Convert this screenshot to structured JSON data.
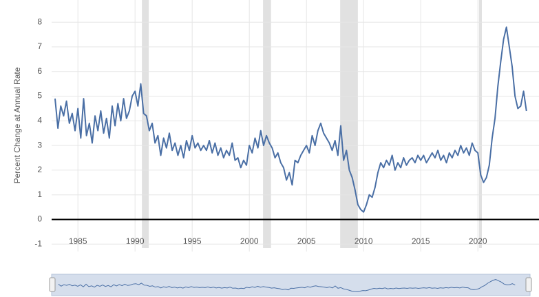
{
  "chart_data": {
    "type": "line",
    "y_label": "Percent Change at Annual Rate",
    "x": [
      1983,
      1983.25,
      1983.5,
      1983.75,
      1984,
      1984.25,
      1984.5,
      1984.75,
      1985,
      1985.25,
      1985.5,
      1985.75,
      1986,
      1986.25,
      1986.5,
      1986.75,
      1987,
      1987.25,
      1987.5,
      1987.75,
      1988,
      1988.25,
      1988.5,
      1988.75,
      1989,
      1989.25,
      1989.5,
      1989.75,
      1990,
      1990.25,
      1990.5,
      1990.75,
      1991,
      1991.25,
      1991.5,
      1991.75,
      1992,
      1992.25,
      1992.5,
      1992.75,
      1993,
      1993.25,
      1993.5,
      1993.75,
      1994,
      1994.25,
      1994.5,
      1994.75,
      1995,
      1995.25,
      1995.5,
      1995.75,
      1996,
      1996.25,
      1996.5,
      1996.75,
      1997,
      1997.25,
      1997.5,
      1997.75,
      1998,
      1998.25,
      1998.5,
      1998.75,
      1999,
      1999.25,
      1999.5,
      1999.75,
      2000,
      2000.25,
      2000.5,
      2000.75,
      2001,
      2001.25,
      2001.5,
      2001.75,
      2002,
      2002.25,
      2002.5,
      2002.75,
      2003,
      2003.25,
      2003.5,
      2003.75,
      2004,
      2004.25,
      2004.5,
      2004.75,
      2005,
      2005.25,
      2005.5,
      2005.75,
      2006,
      2006.25,
      2006.5,
      2006.75,
      2007,
      2007.25,
      2007.5,
      2007.75,
      2008,
      2008.25,
      2008.5,
      2008.75,
      2009,
      2009.25,
      2009.5,
      2009.75,
      2010,
      2010.25,
      2010.5,
      2010.75,
      2011,
      2011.25,
      2011.5,
      2011.75,
      2012,
      2012.25,
      2012.5,
      2012.75,
      2013,
      2013.25,
      2013.5,
      2013.75,
      2014,
      2014.25,
      2014.5,
      2014.75,
      2015,
      2015.25,
      2015.5,
      2015.75,
      2016,
      2016.25,
      2016.5,
      2016.75,
      2017,
      2017.25,
      2017.5,
      2017.75,
      2018,
      2018.25,
      2018.5,
      2018.75,
      2019,
      2019.25,
      2019.5,
      2019.75,
      2020,
      2020.25,
      2020.5,
      2020.75,
      2021,
      2021.25,
      2021.5,
      2021.75,
      2022,
      2022.25,
      2022.5,
      2022.75,
      2023,
      2023.25,
      2023.5,
      2023.75,
      2024,
      2024.25
    ],
    "series": [
      {
        "color": "#4a6fa5",
        "values": [
          4.9,
          3.7,
          4.6,
          4.2,
          4.8,
          3.9,
          4.3,
          3.6,
          4.5,
          3.3,
          4.9,
          3.4,
          3.9,
          3.1,
          4.2,
          3.6,
          4.4,
          3.5,
          4.1,
          3.3,
          4.6,
          3.8,
          4.7,
          4.0,
          4.9,
          4.1,
          4.4,
          5.0,
          5.2,
          4.6,
          5.5,
          4.3,
          4.2,
          3.6,
          3.9,
          3.1,
          3.4,
          2.6,
          3.3,
          2.9,
          3.5,
          2.8,
          3.1,
          2.6,
          3.0,
          2.5,
          3.2,
          2.8,
          3.4,
          2.9,
          3.1,
          2.8,
          3.0,
          2.8,
          3.2,
          2.7,
          3.1,
          2.6,
          2.9,
          2.5,
          2.8,
          2.6,
          3.1,
          2.4,
          2.5,
          2.1,
          2.4,
          2.2,
          3.0,
          2.7,
          3.3,
          2.9,
          3.6,
          3.0,
          3.4,
          3.1,
          2.9,
          2.5,
          2.7,
          2.3,
          2.1,
          1.6,
          1.9,
          1.4,
          2.4,
          2.3,
          2.6,
          2.8,
          3.0,
          2.7,
          3.4,
          3.0,
          3.6,
          3.9,
          3.5,
          3.3,
          3.1,
          2.8,
          3.2,
          2.6,
          3.8,
          2.4,
          2.8,
          2.0,
          1.7,
          1.2,
          0.6,
          0.4,
          0.3,
          0.6,
          1.0,
          0.9,
          1.3,
          1.9,
          2.3,
          2.1,
          2.4,
          2.2,
          2.6,
          2.0,
          2.3,
          2.1,
          2.5,
          2.2,
          2.4,
          2.5,
          2.3,
          2.6,
          2.4,
          2.6,
          2.3,
          2.5,
          2.7,
          2.5,
          2.8,
          2.4,
          2.6,
          2.3,
          2.7,
          2.5,
          2.8,
          2.6,
          3.0,
          2.7,
          2.9,
          2.6,
          3.1,
          2.8,
          2.7,
          1.8,
          1.5,
          1.7,
          2.2,
          3.3,
          4.1,
          5.4,
          6.4,
          7.3,
          7.8,
          7.0,
          6.2,
          5.0,
          4.5,
          4.6,
          5.2,
          4.4
        ]
      }
    ],
    "recessions": [
      [
        1990.6,
        1991.2
      ],
      [
        2001.2,
        2001.9
      ],
      [
        2007.95,
        2009.5
      ],
      [
        2020.1,
        2020.35
      ]
    ],
    "reference_line": 0,
    "xlim": [
      1982.7,
      2025.35
    ],
    "xticks": [
      1985,
      1990,
      1995,
      2000,
      2005,
      2010,
      2015,
      2020
    ],
    "ylim": [
      -1.3,
      8.9
    ],
    "yticks": [
      -1,
      0,
      1,
      2,
      3,
      4,
      5,
      6,
      7,
      8
    ],
    "grid": true
  }
}
